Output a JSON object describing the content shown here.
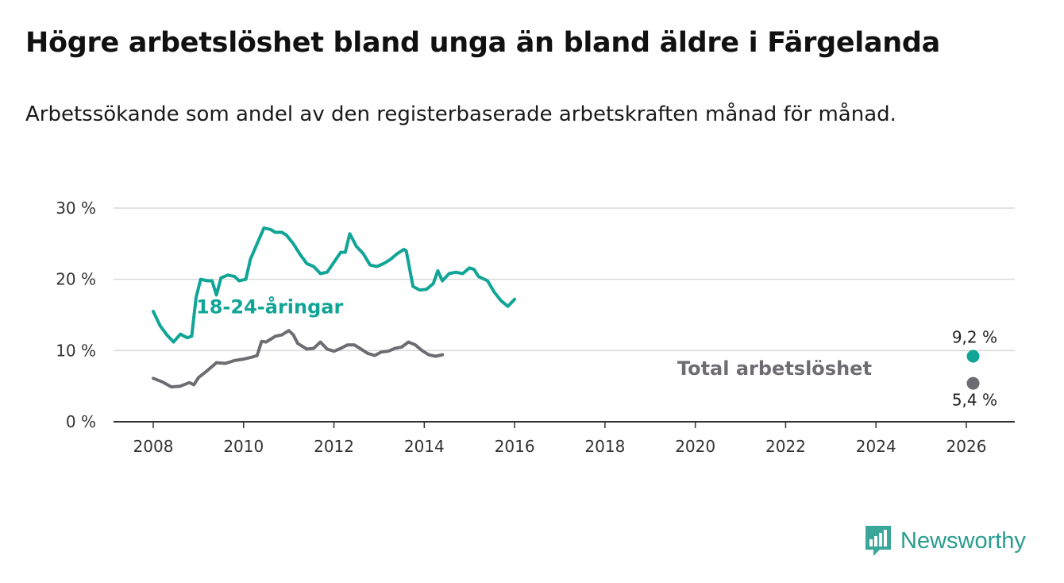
{
  "title": "Högre arbetslöshet bland unga än bland äldre i Färgelanda",
  "subtitle": "Arbetssökande som andel av den registerbaserade arbetskraften månad för månad.",
  "brand": "Newsworthy",
  "colors": {
    "youth": "#10a596",
    "total": "#6e6c72",
    "grid": "#d9d9d9",
    "axis": "#333333"
  },
  "chart_data": {
    "type": "line",
    "x_unit": "year",
    "xlim": [
      2008,
      2026.2
    ],
    "ylim": [
      0,
      30
    ],
    "x_ticks": [
      2008,
      2010,
      2012,
      2014,
      2016,
      2018,
      2020,
      2022,
      2024,
      2026
    ],
    "x_tick_labels": [
      "2008",
      "2010",
      "2012",
      "2014",
      "2016",
      "2018",
      "2020",
      "2022",
      "2024",
      "2026"
    ],
    "y_ticks": [
      0,
      10,
      20,
      30
    ],
    "y_tick_labels": [
      "0 %",
      "10 %",
      "20 %",
      "30 %"
    ],
    "grid": true,
    "series": [
      {
        "name": "18-24-åringar",
        "color": "#10a596",
        "label_at": [
          2008.95,
          15.2
        ],
        "end_label": "9,2 %",
        "points": [
          [
            2008.0,
            15.5
          ],
          [
            2008.15,
            13.5
          ],
          [
            2008.3,
            12.2
          ],
          [
            2008.45,
            11.2
          ],
          [
            2008.6,
            12.3
          ],
          [
            2008.75,
            11.8
          ],
          [
            2008.85,
            12.0
          ],
          [
            2008.95,
            17.5
          ],
          [
            2009.05,
            20.0
          ],
          [
            2009.2,
            19.8
          ],
          [
            2009.3,
            19.8
          ],
          [
            2009.4,
            17.8
          ],
          [
            2009.5,
            20.2
          ],
          [
            2009.65,
            20.6
          ],
          [
            2009.8,
            20.4
          ],
          [
            2009.9,
            19.8
          ],
          [
            2010.05,
            20.0
          ],
          [
            2010.15,
            22.8
          ],
          [
            2010.3,
            25.0
          ],
          [
            2010.45,
            27.2
          ],
          [
            2010.6,
            27.0
          ],
          [
            2010.7,
            26.6
          ],
          [
            2010.85,
            26.6
          ],
          [
            2010.95,
            26.2
          ],
          [
            2011.1,
            25.0
          ],
          [
            2011.25,
            23.5
          ],
          [
            2011.4,
            22.2
          ],
          [
            2011.55,
            21.8
          ],
          [
            2011.7,
            20.8
          ],
          [
            2011.85,
            21.0
          ],
          [
            2012.0,
            22.4
          ],
          [
            2012.15,
            23.8
          ],
          [
            2012.25,
            23.8
          ],
          [
            2012.35,
            26.4
          ],
          [
            2012.5,
            24.6
          ],
          [
            2012.65,
            23.6
          ],
          [
            2012.8,
            22.0
          ],
          [
            2012.95,
            21.8
          ],
          [
            2013.1,
            22.2
          ],
          [
            2013.25,
            22.8
          ],
          [
            2013.4,
            23.6
          ],
          [
            2013.55,
            24.2
          ],
          [
            2013.6,
            24.0
          ],
          [
            2013.75,
            19.0
          ],
          [
            2013.9,
            18.5
          ],
          [
            2014.05,
            18.6
          ],
          [
            2014.2,
            19.4
          ],
          [
            2014.3,
            21.2
          ],
          [
            2014.4,
            19.8
          ],
          [
            2014.55,
            20.8
          ],
          [
            2014.7,
            21.0
          ],
          [
            2014.85,
            20.8
          ],
          [
            2015.0,
            21.6
          ],
          [
            2015.1,
            21.4
          ],
          [
            2015.2,
            20.4
          ],
          [
            2015.4,
            19.8
          ],
          [
            2015.55,
            18.2
          ],
          [
            2015.7,
            17.0
          ],
          [
            2015.85,
            16.2
          ],
          [
            2016.0,
            17.2
          ]
        ]
      },
      {
        "name": "Total arbetslöshet",
        "color": "#6e6c72",
        "label_at": [
          2019.6,
          6.6
        ],
        "end_label": "5,4 %",
        "points": [
          [
            2008.0,
            6.1
          ],
          [
            2008.2,
            5.6
          ],
          [
            2008.4,
            4.9
          ],
          [
            2008.6,
            5.0
          ],
          [
            2008.8,
            5.5
          ],
          [
            2008.9,
            5.2
          ],
          [
            2009.0,
            6.2
          ],
          [
            2009.2,
            7.2
          ],
          [
            2009.4,
            8.3
          ],
          [
            2009.6,
            8.2
          ],
          [
            2009.8,
            8.6
          ],
          [
            2010.0,
            8.8
          ],
          [
            2010.2,
            9.1
          ],
          [
            2010.3,
            9.3
          ],
          [
            2010.4,
            11.3
          ],
          [
            2010.5,
            11.2
          ],
          [
            2010.7,
            12.0
          ],
          [
            2010.85,
            12.2
          ],
          [
            2011.0,
            12.8
          ],
          [
            2011.1,
            12.2
          ],
          [
            2011.2,
            11.0
          ],
          [
            2011.4,
            10.2
          ],
          [
            2011.55,
            10.3
          ],
          [
            2011.7,
            11.2
          ],
          [
            2011.85,
            10.2
          ],
          [
            2012.0,
            9.9
          ],
          [
            2012.15,
            10.3
          ],
          [
            2012.3,
            10.8
          ],
          [
            2012.45,
            10.8
          ],
          [
            2012.6,
            10.2
          ],
          [
            2012.75,
            9.6
          ],
          [
            2012.9,
            9.3
          ],
          [
            2013.05,
            9.8
          ],
          [
            2013.2,
            9.9
          ],
          [
            2013.35,
            10.3
          ],
          [
            2013.5,
            10.5
          ],
          [
            2013.65,
            11.2
          ],
          [
            2013.8,
            10.8
          ],
          [
            2013.95,
            10.0
          ],
          [
            2014.1,
            9.4
          ],
          [
            2014.25,
            9.2
          ],
          [
            2014.4,
            9.4
          ]
        ]
      }
    ],
    "end_markers": [
      {
        "series": "18-24-åringar",
        "x": 2026.15,
        "y": 9.2
      },
      {
        "series": "Total arbetslöshet",
        "x": 2026.15,
        "y": 5.4
      }
    ]
  }
}
